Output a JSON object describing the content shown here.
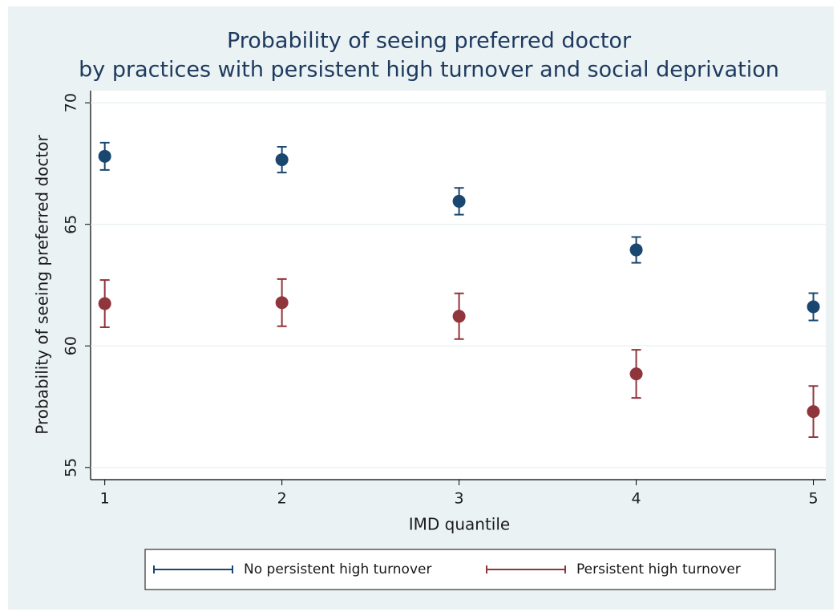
{
  "chart_data": {
    "type": "errorbar-scatter",
    "title": [
      "Probability of seeing preferred doctor",
      "by practices with persistent high turnover and social deprivation"
    ],
    "x_label": "IMD quantile",
    "y_label": "Probability of seeing preferred doctor",
    "x": [
      1,
      2,
      3,
      4,
      5
    ],
    "series": [
      {
        "name": "No persistent high turnover",
        "color": "#1a476f",
        "values": [
          67.8,
          67.66,
          65.95,
          63.95,
          61.61
        ],
        "errors": [
          0.56,
          0.53,
          0.55,
          0.53,
          0.56
        ]
      },
      {
        "name": "Persistent high turnover",
        "color": "#90353b",
        "values": [
          61.74,
          61.78,
          61.22,
          58.85,
          57.3
        ],
        "errors": [
          0.97,
          0.97,
          0.94,
          0.99,
          1.05
        ]
      }
    ],
    "xlim": [
      0.92,
      5.07
    ],
    "xticks": [
      1,
      2,
      3,
      4,
      5
    ],
    "ylim": [
      54.5,
      70.5
    ],
    "yticks": [
      55,
      60,
      65,
      70
    ],
    "grid": true
  }
}
